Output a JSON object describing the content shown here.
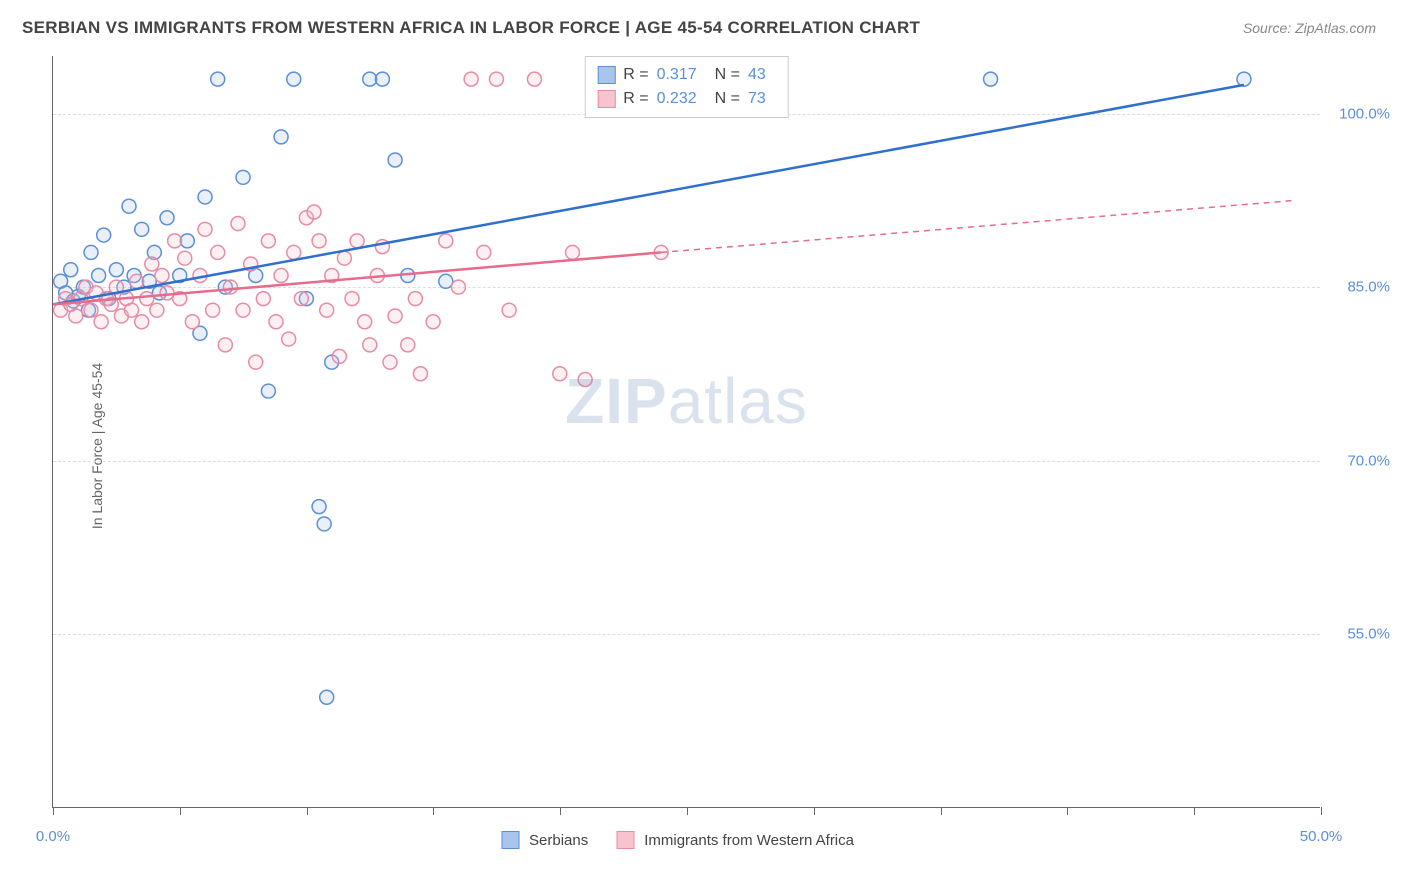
{
  "title": "SERBIAN VS IMMIGRANTS FROM WESTERN AFRICA IN LABOR FORCE | AGE 45-54 CORRELATION CHART",
  "source": "Source: ZipAtlas.com",
  "y_axis_label": "In Labor Force | Age 45-54",
  "watermark_bold": "ZIP",
  "watermark_light": "atlas",
  "chart": {
    "type": "scatter",
    "xlim": [
      0,
      50
    ],
    "ylim": [
      40,
      105
    ],
    "x_ticks": [
      0,
      5,
      10,
      15,
      20,
      25,
      30,
      35,
      40,
      45,
      50
    ],
    "x_tick_labels": {
      "0": "0.0%",
      "50": "50.0%"
    },
    "y_gridlines": [
      55,
      70,
      85,
      100
    ],
    "y_tick_labels": {
      "55": "55.0%",
      "70": "70.0%",
      "85": "85.0%",
      "100": "100.0%"
    },
    "grid_color": "#dddddd",
    "axis_color": "#666666",
    "background_color": "#ffffff",
    "marker_radius": 7,
    "marker_stroke_width": 1.5,
    "marker_fill_opacity": 0.25,
    "line_width_solid": 2.5,
    "line_width_dash": 1.5,
    "dash_pattern": "6,5"
  },
  "legend_top": {
    "r_label": "R =",
    "n_label": "N =",
    "rows": [
      {
        "swatch_fill": "#a8c5ec",
        "swatch_stroke": "#5b8fd6",
        "r": "0.317",
        "n": "43"
      },
      {
        "swatch_fill": "#f7c3cf",
        "swatch_stroke": "#e88ba3",
        "r": "0.232",
        "n": "73"
      }
    ]
  },
  "legend_bottom": {
    "items": [
      {
        "swatch_fill": "#a8c5ec",
        "swatch_stroke": "#5b8fd6",
        "label": "Serbians"
      },
      {
        "swatch_fill": "#f7c3cf",
        "swatch_stroke": "#e88ba3",
        "label": "Immigrants from Western Africa"
      }
    ]
  },
  "series": [
    {
      "name": "Serbians",
      "color_stroke": "#5b8fd6",
      "color_fill": "#a8c5ec",
      "trend_color": "#2f6fd0",
      "trend_solid": [
        [
          0,
          83.5
        ],
        [
          47,
          102.5
        ]
      ],
      "trend_dash": null,
      "points": [
        [
          0.3,
          85.5
        ],
        [
          0.5,
          84.5
        ],
        [
          0.7,
          86.5
        ],
        [
          0.8,
          83.8
        ],
        [
          1.0,
          84.2
        ],
        [
          1.2,
          85.0
        ],
        [
          1.4,
          83.0
        ],
        [
          1.5,
          88.0
        ],
        [
          1.8,
          86.0
        ],
        [
          2.0,
          89.5
        ],
        [
          2.2,
          84.0
        ],
        [
          2.5,
          86.5
        ],
        [
          2.8,
          85.0
        ],
        [
          3.0,
          92.0
        ],
        [
          3.2,
          86.0
        ],
        [
          3.5,
          90.0
        ],
        [
          3.8,
          85.5
        ],
        [
          4.0,
          88.0
        ],
        [
          4.2,
          84.5
        ],
        [
          4.5,
          91.0
        ],
        [
          5.0,
          86.0
        ],
        [
          5.3,
          89.0
        ],
        [
          5.8,
          81.0
        ],
        [
          6.0,
          92.8
        ],
        [
          6.5,
          103.0
        ],
        [
          6.8,
          85.0
        ],
        [
          7.5,
          94.5
        ],
        [
          8.0,
          86.0
        ],
        [
          8.5,
          76.0
        ],
        [
          9.0,
          98.0
        ],
        [
          9.5,
          103.0
        ],
        [
          10.0,
          84.0
        ],
        [
          10.5,
          66.0
        ],
        [
          10.7,
          64.5
        ],
        [
          10.8,
          49.5
        ],
        [
          11.0,
          78.5
        ],
        [
          12.5,
          103.0
        ],
        [
          13.0,
          103.0
        ],
        [
          13.5,
          96.0
        ],
        [
          14.0,
          86.0
        ],
        [
          15.5,
          85.5
        ],
        [
          37.0,
          103.0
        ],
        [
          47.0,
          103.0
        ]
      ]
    },
    {
      "name": "Immigrants from Western Africa",
      "color_stroke": "#e88ba3",
      "color_fill": "#f7c3cf",
      "trend_color": "#e86b8c",
      "trend_solid": [
        [
          0,
          83.5
        ],
        [
          24,
          88.0
        ]
      ],
      "trend_dash": [
        [
          24,
          88.0
        ],
        [
          49,
          92.5
        ]
      ],
      "points": [
        [
          0.3,
          83.0
        ],
        [
          0.5,
          84.0
        ],
        [
          0.7,
          83.5
        ],
        [
          0.9,
          82.5
        ],
        [
          1.1,
          84.0
        ],
        [
          1.3,
          85.0
        ],
        [
          1.5,
          83.0
        ],
        [
          1.7,
          84.5
        ],
        [
          1.9,
          82.0
        ],
        [
          2.1,
          84.0
        ],
        [
          2.3,
          83.5
        ],
        [
          2.5,
          85.0
        ],
        [
          2.7,
          82.5
        ],
        [
          2.9,
          84.0
        ],
        [
          3.1,
          83.0
        ],
        [
          3.3,
          85.5
        ],
        [
          3.5,
          82.0
        ],
        [
          3.7,
          84.0
        ],
        [
          3.9,
          87.0
        ],
        [
          4.1,
          83.0
        ],
        [
          4.3,
          86.0
        ],
        [
          4.5,
          84.5
        ],
        [
          4.8,
          89.0
        ],
        [
          5.0,
          84.0
        ],
        [
          5.2,
          87.5
        ],
        [
          5.5,
          82.0
        ],
        [
          5.8,
          86.0
        ],
        [
          6.0,
          90.0
        ],
        [
          6.3,
          83.0
        ],
        [
          6.5,
          88.0
        ],
        [
          6.8,
          80.0
        ],
        [
          7.0,
          85.0
        ],
        [
          7.3,
          90.5
        ],
        [
          7.5,
          83.0
        ],
        [
          7.8,
          87.0
        ],
        [
          8.0,
          78.5
        ],
        [
          8.3,
          84.0
        ],
        [
          8.5,
          89.0
        ],
        [
          8.8,
          82.0
        ],
        [
          9.0,
          86.0
        ],
        [
          9.3,
          80.5
        ],
        [
          9.5,
          88.0
        ],
        [
          9.8,
          84.0
        ],
        [
          10.0,
          91.0
        ],
        [
          10.3,
          91.5
        ],
        [
          10.5,
          89.0
        ],
        [
          10.8,
          83.0
        ],
        [
          11.0,
          86.0
        ],
        [
          11.3,
          79.0
        ],
        [
          11.5,
          87.5
        ],
        [
          11.8,
          84.0
        ],
        [
          12.0,
          89.0
        ],
        [
          12.3,
          82.0
        ],
        [
          12.5,
          80.0
        ],
        [
          12.8,
          86.0
        ],
        [
          13.0,
          88.5
        ],
        [
          13.3,
          78.5
        ],
        [
          13.5,
          82.5
        ],
        [
          14.0,
          80.0
        ],
        [
          14.3,
          84.0
        ],
        [
          14.5,
          77.5
        ],
        [
          15.0,
          82.0
        ],
        [
          15.5,
          89.0
        ],
        [
          16.0,
          85.0
        ],
        [
          16.5,
          103.0
        ],
        [
          17.0,
          88.0
        ],
        [
          17.5,
          103.0
        ],
        [
          18.0,
          83.0
        ],
        [
          19.0,
          103.0
        ],
        [
          20.0,
          77.5
        ],
        [
          20.5,
          88.0
        ],
        [
          21.0,
          77.0
        ],
        [
          24.0,
          88.0
        ]
      ]
    }
  ]
}
